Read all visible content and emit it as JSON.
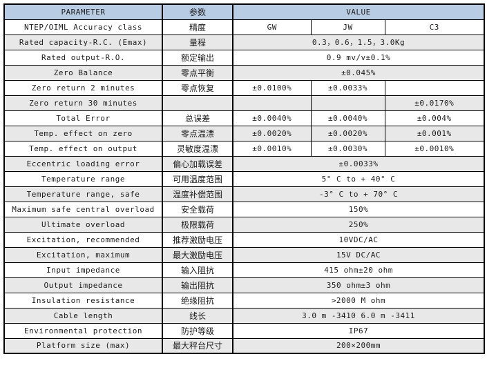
{
  "colors": {
    "header_bg": "#b8cce4",
    "shade_bg": "#e8e8e8",
    "border": "#000000"
  },
  "table": {
    "header": {
      "parameter": "PARAMETER",
      "cn": "参数",
      "value": "VALUE"
    },
    "rows": [
      {
        "param": "NTEP/OIML Accuracy class",
        "cn": "精度",
        "cells": [
          "GW",
          "JW",
          "C3"
        ],
        "shade": false
      },
      {
        "param": "Rated capacity-R.C. (Emax)",
        "cn": "量程",
        "span": "0.3，0.6，1.5，3.0Kg",
        "shade": true
      },
      {
        "param": "Rated output-R.O.",
        "cn": "额定输出",
        "span": "0.9 mv/v±0.1%",
        "shade": false
      },
      {
        "param": "Zero Balance",
        "cn": "零点平衡",
        "span": "±0.045%",
        "shade": true
      },
      {
        "param": "Zero return 2 minutes",
        "cn": "零点恢复",
        "cells": [
          "±0.0100%",
          "±0.0033%",
          ""
        ],
        "shade": false
      },
      {
        "param": "Zero return 30 minutes",
        "cn": "",
        "cells": [
          "",
          "",
          "±0.0170%"
        ],
        "shade": true
      },
      {
        "param": "Total Error",
        "cn": "总误差",
        "cells": [
          "±0.0040%",
          "±0.0040%",
          "±0.004%"
        ],
        "shade": false
      },
      {
        "param": "Temp. effect on zero",
        "cn": "零点温漂",
        "cells": [
          "±0.0020%",
          "±0.0020%",
          "±0.001%"
        ],
        "shade": true
      },
      {
        "param": "Temp. effect on output",
        "cn": "灵敏度温漂",
        "cells": [
          "±0.0010%",
          "±0.0030%",
          "±0.0010%"
        ],
        "shade": false
      },
      {
        "param": "Eccentric loading error",
        "cn": "偏心加载误差",
        "span": "±0.0033%",
        "shade": true
      },
      {
        "param": "Temperature range",
        "cn": "可用温度范围",
        "span": "5° C to + 40° C",
        "shade": false
      },
      {
        "param": "Temperature range, safe",
        "cn": "温度补偿范围",
        "span": "-3° C to + 70° C",
        "shade": true
      },
      {
        "param": "Maximum safe central overload",
        "cn": "安全载荷",
        "span": "150%",
        "shade": false
      },
      {
        "param": "Ultimate overload",
        "cn": "极限载荷",
        "span": "250%",
        "shade": true
      },
      {
        "param": "Excitation, recommended",
        "cn": "推荐激励电压",
        "span": "10VDC/AC",
        "shade": false
      },
      {
        "param": "Excitation, maximum",
        "cn": "最大激励电压",
        "span": "15V DC/AC",
        "shade": true
      },
      {
        "param": "Input impedance",
        "cn": "输入阻抗",
        "span": "415 ohm±20 ohm",
        "shade": false
      },
      {
        "param": "Output impedance",
        "cn": "输出阻抗",
        "span": "350 ohm±3 ohm",
        "shade": true
      },
      {
        "param": "Insulation resistance",
        "cn": "绝缘阻抗",
        "span": ">2000 M ohm",
        "shade": false
      },
      {
        "param": "Cable length",
        "cn": "线长",
        "span": "3.0 m -3410  6.0 m -3411",
        "shade": true
      },
      {
        "param": "Environmental protection",
        "cn": "防护等级",
        "span": "IP67",
        "shade": false
      },
      {
        "param": "Platform size (max)",
        "cn": "最大秤台尺寸",
        "span": "200×200mm",
        "shade": true
      }
    ]
  }
}
